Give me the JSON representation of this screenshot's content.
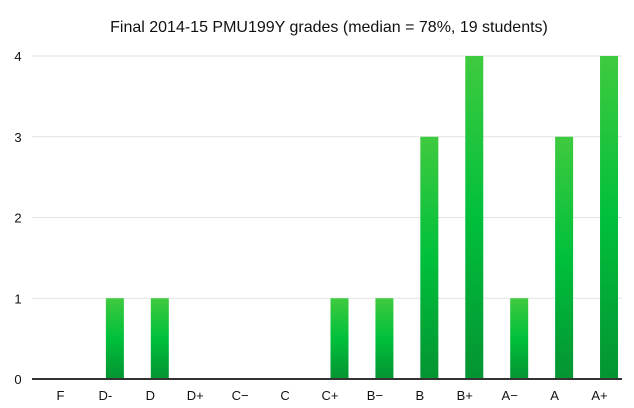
{
  "chart_data": {
    "type": "bar",
    "title": "Final 2014-15 PMU199Y grades (median = 78%, 19 students)",
    "xlabel": "",
    "ylabel": "",
    "categories": [
      "F",
      "D-",
      "D",
      "D+",
      "C−",
      "C",
      "C+",
      "B−",
      "B",
      "B+",
      "A−",
      "A",
      "A+"
    ],
    "values": [
      0,
      1,
      1,
      0,
      0,
      0,
      1,
      1,
      3,
      4,
      1,
      3,
      4
    ],
    "ylim": [
      0,
      4
    ],
    "yticks": [
      0,
      1,
      2,
      3,
      4
    ],
    "grid": true,
    "legend": "none",
    "colors": {
      "bar_top": "#3fca3f",
      "bar_mid": "#00c03b",
      "bar_bottom": "#049432",
      "grid": "#e2e2e2",
      "axis": "#333333"
    }
  }
}
